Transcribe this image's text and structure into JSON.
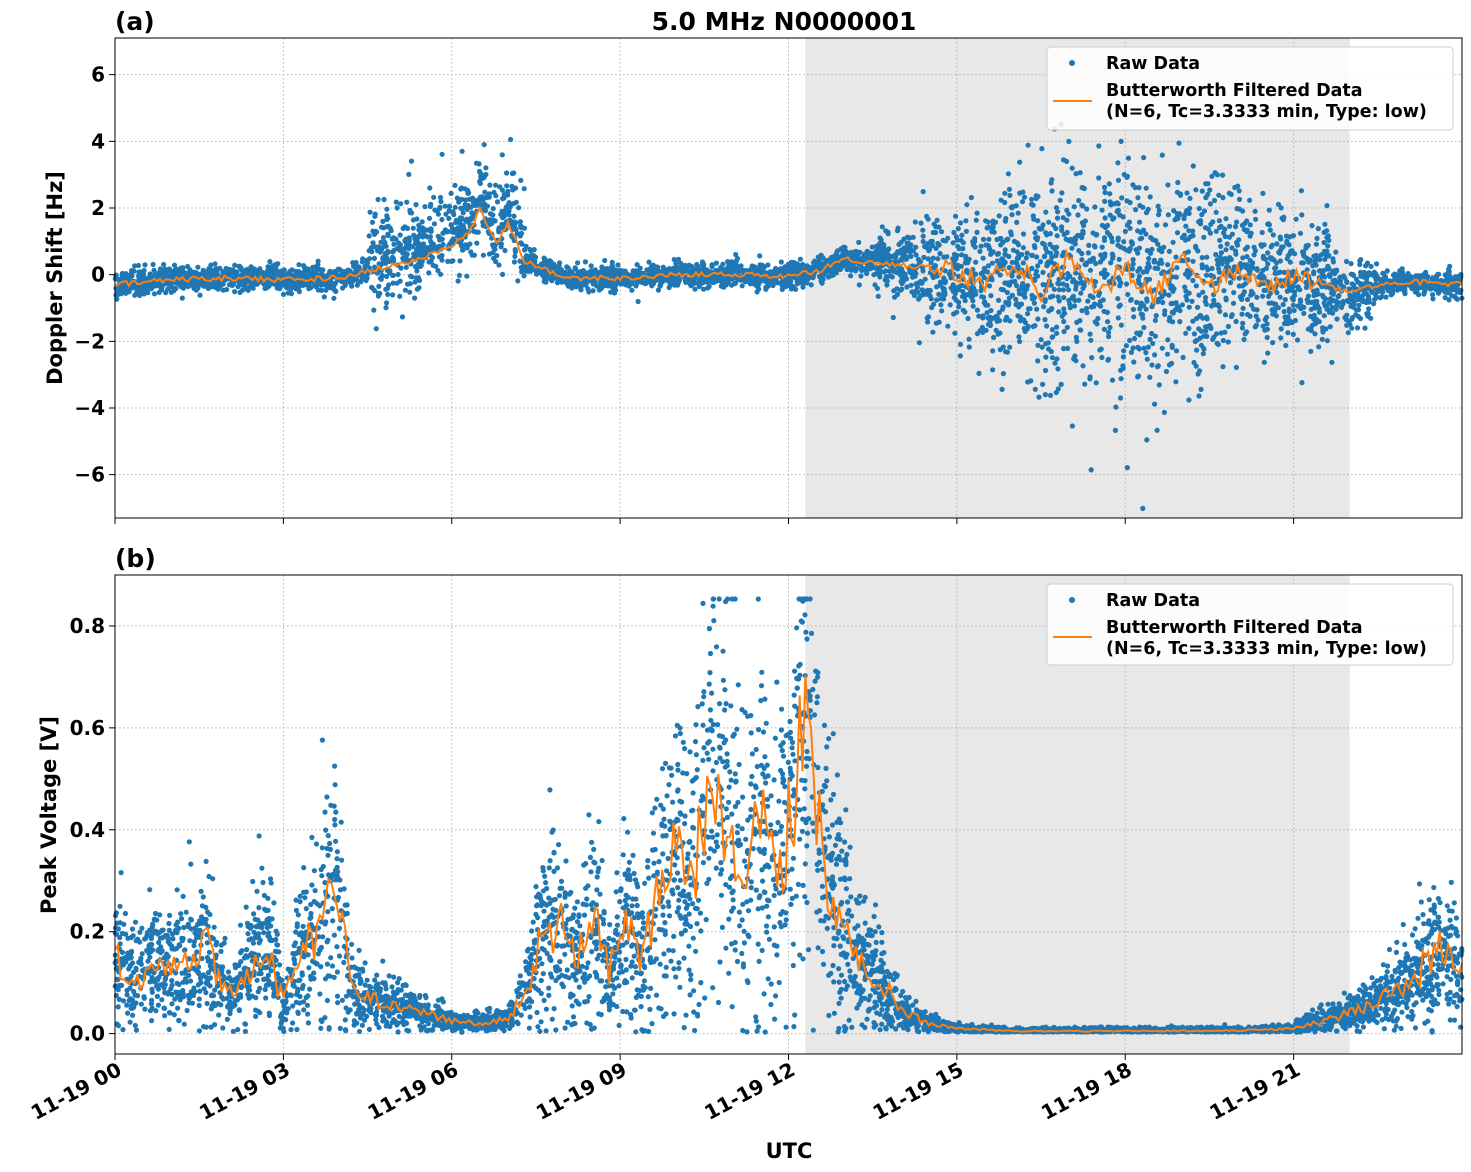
{
  "figure": {
    "title": "5.0 MHz N0000001",
    "xlabel": "UTC"
  },
  "colors": {
    "raw": "#1f77b4",
    "filtered": "#ff7f0e",
    "shade": "#e8e8e8",
    "grid": "#b0b0b0"
  },
  "chart_data": [
    {
      "type": "scatter",
      "panel_label": "(a)",
      "ylabel": "Doppler Shift [Hz]",
      "xlim": [
        "11-19 00",
        "11-20 00"
      ],
      "x_unit": "hours UTC",
      "ylim": [
        -7.3,
        7.1
      ],
      "yticks": [
        6,
        4,
        2,
        0,
        -2,
        -4,
        -6
      ],
      "ytick_labels": [
        "6",
        "4",
        "2",
        "0",
        "−2",
        "−4",
        "−6"
      ],
      "shaded_region": {
        "from": "11-19 12:18",
        "to": "11-19 22:00"
      },
      "grid": true,
      "legend": {
        "placement": "top-right",
        "entries": [
          "Raw Data",
          "Butterworth Filtered Data",
          "(N=6, Tc=3.3333 min, Type: low)"
        ]
      },
      "series": [
        {
          "name": "Raw Data",
          "kind": "scatter"
        },
        {
          "name": "Butterworth Filtered Data",
          "kind": "line",
          "x": [
            0,
            1,
            2,
            3,
            4,
            4.5,
            5,
            5.5,
            6,
            6.3,
            6.5,
            6.8,
            7,
            7.3,
            8,
            9,
            10,
            11,
            12,
            12.5,
            13,
            14,
            15,
            15.5,
            16,
            16.5,
            17,
            17.5,
            18,
            18.5,
            19,
            19.5,
            20,
            20.5,
            21,
            21.5,
            22,
            23,
            24
          ],
          "y": [
            -0.3,
            -0.15,
            -0.1,
            -0.15,
            -0.1,
            0.1,
            0.3,
            0.5,
            0.9,
            1.2,
            2.0,
            0.9,
            1.6,
            0.4,
            -0.1,
            -0.1,
            0.0,
            0.0,
            -0.05,
            0.1,
            0.45,
            0.3,
            0.1,
            -0.3,
            0.4,
            -0.5,
            0.6,
            -0.6,
            0.3,
            -0.7,
            0.5,
            -0.4,
            0.3,
            -0.5,
            -0.1,
            -0.3,
            -0.5,
            -0.2,
            -0.3
          ]
        }
      ]
    },
    {
      "type": "scatter",
      "panel_label": "(b)",
      "ylabel": "Peak Voltage [V]",
      "xlim": [
        "11-19 00",
        "11-20 00"
      ],
      "x_unit": "hours UTC",
      "ylim": [
        -0.04,
        0.9
      ],
      "yticks": [
        0.0,
        0.2,
        0.4,
        0.6,
        0.8
      ],
      "ytick_labels": [
        "0.0",
        "0.2",
        "0.4",
        "0.6",
        "0.8"
      ],
      "shaded_region": {
        "from": "11-19 12:18",
        "to": "11-19 22:00"
      },
      "grid": true,
      "legend": {
        "placement": "top-right",
        "entries": [
          "Raw Data",
          "Butterworth Filtered Data",
          "(N=6, Tc=3.3333 min, Type: low)"
        ]
      },
      "series": [
        {
          "name": "Raw Data",
          "kind": "scatter"
        },
        {
          "name": "Butterworth Filtered Data",
          "kind": "line",
          "x": [
            0,
            0.3,
            0.7,
            1.0,
            1.3,
            1.6,
            2.0,
            2.4,
            2.7,
            3.0,
            3.3,
            3.6,
            3.9,
            4.2,
            4.6,
            5.0,
            5.5,
            6.0,
            6.5,
            7.0,
            7.3,
            7.6,
            7.9,
            8.2,
            8.5,
            8.8,
            9.1,
            9.4,
            9.7,
            10.0,
            10.3,
            10.6,
            10.9,
            11.2,
            11.5,
            11.8,
            12.1,
            12.3,
            12.6,
            12.9,
            13.2,
            13.5,
            13.8,
            14.1,
            14.5,
            15.0,
            16,
            18,
            20,
            21,
            22,
            22.5,
            23,
            23.3,
            23.6,
            24
          ],
          "y": [
            0.15,
            0.1,
            0.14,
            0.12,
            0.14,
            0.18,
            0.07,
            0.12,
            0.17,
            0.06,
            0.15,
            0.2,
            0.33,
            0.1,
            0.07,
            0.05,
            0.04,
            0.025,
            0.02,
            0.03,
            0.08,
            0.18,
            0.22,
            0.14,
            0.24,
            0.12,
            0.2,
            0.15,
            0.28,
            0.35,
            0.3,
            0.5,
            0.42,
            0.35,
            0.4,
            0.3,
            0.45,
            0.62,
            0.35,
            0.25,
            0.15,
            0.12,
            0.08,
            0.04,
            0.02,
            0.01,
            0.005,
            0.005,
            0.006,
            0.01,
            0.04,
            0.06,
            0.1,
            0.13,
            0.17,
            0.12
          ]
        }
      ]
    }
  ],
  "xticks": [
    {
      "value": 0,
      "label": "11-19 00"
    },
    {
      "value": 3,
      "label": "11-19 03"
    },
    {
      "value": 6,
      "label": "11-19 06"
    },
    {
      "value": 9,
      "label": "11-19 09"
    },
    {
      "value": 12,
      "label": "11-19 12"
    },
    {
      "value": 15,
      "label": "11-19 15"
    },
    {
      "value": 18,
      "label": "11-19 18"
    },
    {
      "value": 21,
      "label": "11-19 21"
    }
  ]
}
